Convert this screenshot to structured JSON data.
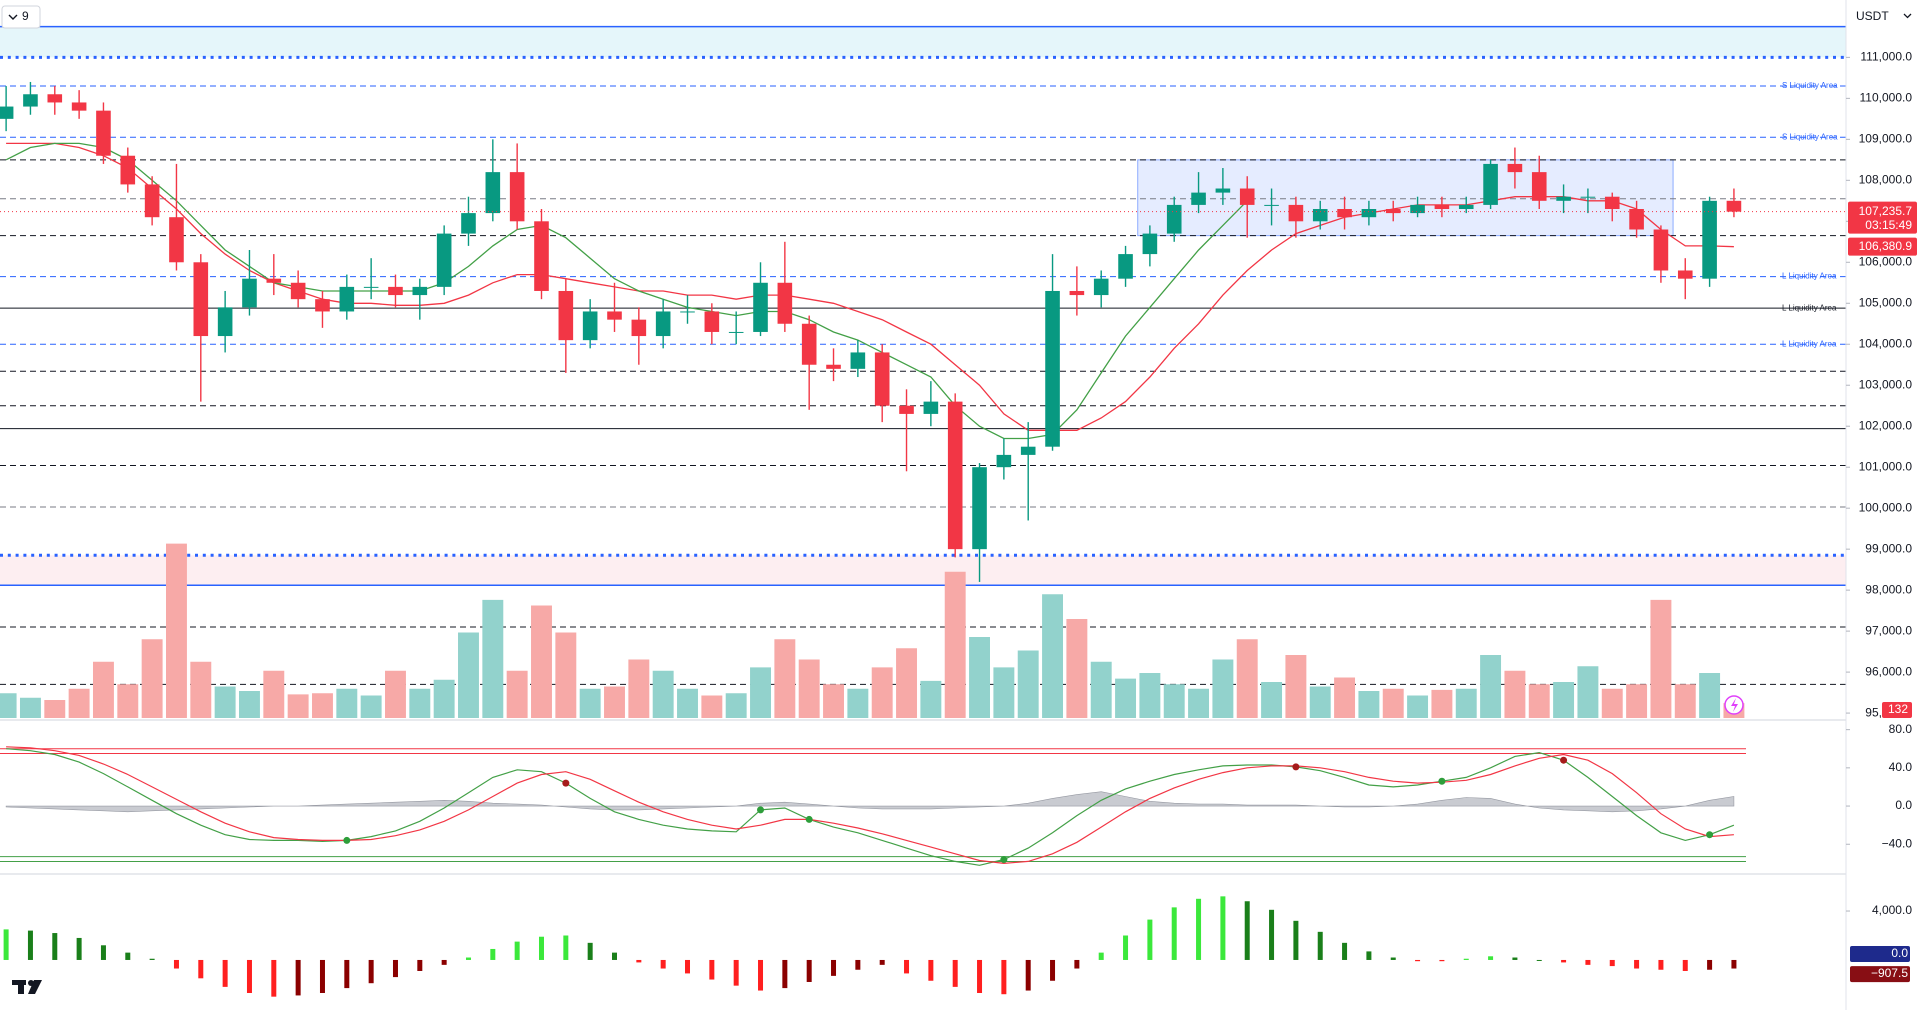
{
  "chart_data": {
    "type": "candlestick",
    "header": {
      "interval": "9",
      "currency": "USDT"
    },
    "ylim": [
      94880,
      112400
    ],
    "yticks": [
      {
        "value": 95000,
        "label": "95,000.0"
      },
      {
        "value": 96000,
        "label": "96,000.0"
      },
      {
        "value": 97000,
        "label": "97,000.0"
      },
      {
        "value": 98000,
        "label": "98,000.0"
      },
      {
        "value": 99000,
        "label": "99,000.0"
      },
      {
        "value": 100000,
        "label": "100,000.0"
      },
      {
        "value": 101000,
        "label": "101,000.0"
      },
      {
        "value": 102000,
        "label": "102,000.0"
      },
      {
        "value": 103000,
        "label": "103,000.0"
      },
      {
        "value": 104000,
        "label": "104,000.0"
      },
      {
        "value": 105000,
        "label": "105,000.0"
      },
      {
        "value": 106000,
        "label": "106,000.0"
      },
      {
        "value": 107000,
        "label": "107,000.0"
      },
      {
        "value": 108000,
        "label": "108,000.0"
      },
      {
        "value": 109000,
        "label": "109,000.0"
      },
      {
        "value": 110000,
        "label": "110,000.0"
      },
      {
        "value": 111000,
        "label": "111,000.0"
      }
    ],
    "up_color": "#089981",
    "down_color": "#f23645",
    "ohlc": [
      [
        109500,
        110300,
        109200,
        109800
      ],
      [
        109800,
        110400,
        109600,
        110100
      ],
      [
        110100,
        110300,
        109600,
        109900
      ],
      [
        109900,
        110200,
        109500,
        109700
      ],
      [
        109700,
        109900,
        108400,
        108600
      ],
      [
        108600,
        108800,
        107700,
        107900
      ],
      [
        107900,
        108100,
        106900,
        107100
      ],
      [
        107100,
        108400,
        105800,
        106000
      ],
      [
        106000,
        106200,
        102600,
        104200
      ],
      [
        104200,
        105300,
        103800,
        104900
      ],
      [
        104900,
        106300,
        104700,
        105600
      ],
      [
        105600,
        106200,
        105200,
        105500
      ],
      [
        105500,
        105800,
        104900,
        105100
      ],
      [
        105100,
        105300,
        104400,
        104800
      ],
      [
        104800,
        105700,
        104600,
        105400
      ],
      [
        105400,
        106100,
        105100,
        105400
      ],
      [
        105400,
        105700,
        104900,
        105200
      ],
      [
        105200,
        105600,
        104600,
        105400
      ],
      [
        105400,
        106900,
        105200,
        106700
      ],
      [
        106700,
        107600,
        106400,
        107200
      ],
      [
        107200,
        109000,
        107000,
        108200
      ],
      [
        108200,
        108900,
        106800,
        107000
      ],
      [
        107000,
        107300,
        105100,
        105300
      ],
      [
        105300,
        105600,
        103300,
        104100
      ],
      [
        104100,
        105100,
        103900,
        104800
      ],
      [
        104800,
        105500,
        104300,
        104600
      ],
      [
        104600,
        104900,
        103500,
        104200
      ],
      [
        104200,
        105100,
        103900,
        104800
      ],
      [
        104800,
        105200,
        104500,
        104800
      ],
      [
        104800,
        105000,
        104000,
        104300
      ],
      [
        104300,
        104800,
        104000,
        104300
      ],
      [
        104300,
        106000,
        104200,
        105500
      ],
      [
        105500,
        106500,
        104300,
        104500
      ],
      [
        104500,
        104700,
        102400,
        103500
      ],
      [
        103500,
        103900,
        103100,
        103400
      ],
      [
        103400,
        104100,
        103200,
        103800
      ],
      [
        103800,
        104000,
        102100,
        102500
      ],
      [
        102500,
        102900,
        100900,
        102300
      ],
      [
        102300,
        103100,
        102000,
        102600
      ],
      [
        102600,
        102800,
        98800,
        99000
      ],
      [
        99000,
        101100,
        98200,
        101000
      ],
      [
        101000,
        101700,
        100700,
        101300
      ],
      [
        101300,
        102100,
        99700,
        101500
      ],
      [
        101500,
        106200,
        101400,
        105300
      ],
      [
        105300,
        105900,
        104700,
        105200
      ],
      [
        105200,
        105800,
        104900,
        105600
      ],
      [
        105600,
        106400,
        105400,
        106200
      ],
      [
        106200,
        106900,
        105900,
        106700
      ],
      [
        106700,
        107600,
        106500,
        107400
      ],
      [
        107400,
        108200,
        107200,
        107700
      ],
      [
        107700,
        108300,
        107400,
        107800
      ],
      [
        107800,
        108100,
        106600,
        107400
      ],
      [
        107400,
        107800,
        106900,
        107400
      ],
      [
        107400,
        107600,
        106600,
        107000
      ],
      [
        107000,
        107500,
        106800,
        107300
      ],
      [
        107300,
        107600,
        106800,
        107100
      ],
      [
        107100,
        107500,
        106900,
        107300
      ],
      [
        107300,
        107500,
        107000,
        107200
      ],
      [
        107200,
        107600,
        107100,
        107400
      ],
      [
        107400,
        107600,
        107100,
        107300
      ],
      [
        107300,
        107600,
        107200,
        107400
      ],
      [
        107400,
        108500,
        107300,
        108400
      ],
      [
        108400,
        108800,
        107800,
        108200
      ],
      [
        108200,
        108600,
        107300,
        107500
      ],
      [
        107500,
        107900,
        107200,
        107600
      ],
      [
        107600,
        107800,
        107200,
        107600
      ],
      [
        107600,
        107700,
        107000,
        107300
      ],
      [
        107300,
        107500,
        106600,
        106800
      ],
      [
        106800,
        106900,
        105500,
        105800
      ],
      [
        105800,
        106100,
        105100,
        105600
      ],
      [
        105600,
        107600,
        105400,
        107500
      ],
      [
        107500,
        107800,
        107100,
        107235.7
      ]
    ],
    "volume": {
      "vlim": [
        0,
        1600
      ],
      "up_color": "#92d2cc",
      "down_color": "#f7a9a7",
      "label_color": "#f23645",
      "values": [
        220,
        180,
        160,
        260,
        500,
        300,
        700,
        1550,
        500,
        280,
        240,
        420,
        210,
        220,
        260,
        200,
        420,
        260,
        340,
        760,
        1050,
        420,
        1000,
        760,
        260,
        280,
        520,
        420,
        260,
        200,
        220,
        450,
        700,
        520,
        300,
        260,
        450,
        620,
        330,
        1300,
        720,
        450,
        600,
        1100,
        880,
        500,
        350,
        400,
        300,
        260,
        520,
        700,
        320,
        560,
        280,
        360,
        240,
        260,
        200,
        250,
        260,
        560,
        420,
        300,
        320,
        460,
        260,
        300,
        1050,
        300,
        400,
        132
      ]
    },
    "ma_slow": {
      "color": "#f23645",
      "last_label": "106,380.9",
      "values": [
        108900,
        108900,
        108900,
        108800,
        108600,
        108300,
        107800,
        107300,
        106700,
        106200,
        105800,
        105500,
        105300,
        105100,
        105000,
        105000,
        104950,
        104950,
        105000,
        105200,
        105500,
        105700,
        105700,
        105600,
        105500,
        105400,
        105300,
        105300,
        105200,
        105200,
        105100,
        105200,
        105200,
        105100,
        105000,
        104800,
        104600,
        104300,
        104000,
        103500,
        103000,
        102300,
        101900,
        101900,
        101900,
        102200,
        102600,
        103200,
        103900,
        104500,
        105200,
        105800,
        106300,
        106700,
        106900,
        107100,
        107200,
        107300,
        107400,
        107400,
        107400,
        107500,
        107600,
        107600,
        107600,
        107500,
        107500,
        107300,
        106800,
        106400,
        106400,
        106380.9
      ]
    },
    "ma_fast": {
      "color": "#43a047",
      "values": [
        108500,
        108800,
        108900,
        108900,
        108800,
        108500,
        108000,
        107500,
        106900,
        106300,
        105900,
        105500,
        105400,
        105300,
        105300,
        105300,
        105300,
        105300,
        105500,
        105900,
        106400,
        106800,
        106900,
        106600,
        106100,
        105600,
        105300,
        105100,
        104900,
        104800,
        104700,
        104800,
        104800,
        104600,
        104300,
        104100,
        103800,
        103500,
        103200,
        102500,
        102000,
        101700,
        101700,
        101800,
        102400,
        103300,
        104200,
        104900,
        105600,
        106300,
        106900,
        107500,
        null,
        null,
        null,
        null,
        null,
        null,
        null,
        null,
        null,
        null,
        null,
        null,
        null,
        null,
        null,
        null,
        null,
        null,
        null,
        null
      ]
    },
    "last_price": {
      "value": 107235.7,
      "label": "107,235.7",
      "countdown": "03:15:49",
      "color": "#f23645"
    },
    "zones": [
      {
        "range": [
          111000,
          111750
        ],
        "color": "#e5f6fa"
      },
      {
        "range": [
          98120,
          98850
        ],
        "color": "#fdeef1"
      }
    ],
    "range_box": {
      "price": [
        106650,
        108500
      ],
      "from": 47,
      "to": 68,
      "color": "#2962ff"
    },
    "levels": [
      {
        "value": 111750,
        "color": "#2962ff",
        "style": "solid",
        "weight": 1.5
      },
      {
        "value": 111000,
        "color": "#2962ff",
        "style": "dotted",
        "weight": 3
      },
      {
        "value": 110300,
        "color": "#2962ff",
        "style": "dashed",
        "weight": 1,
        "label": "S Liquidity Area"
      },
      {
        "value": 109050,
        "color": "#2962ff",
        "style": "dashed",
        "weight": 1,
        "label": "S Liquidity Area"
      },
      {
        "value": 108500,
        "color": "#131722",
        "style": "dashed",
        "weight": 1
      },
      {
        "value": 107550,
        "color": "#787b86",
        "style": "dashed",
        "weight": 1
      },
      {
        "value": 106650,
        "color": "#131722",
        "style": "dashed",
        "weight": 1
      },
      {
        "value": 105650,
        "color": "#2962ff",
        "style": "dashed",
        "weight": 1,
        "label": "L Liquidity Area"
      },
      {
        "value": 104880,
        "color": "#131722",
        "style": "solid",
        "weight": 1,
        "label": "L Liquidity Area"
      },
      {
        "value": 104000,
        "color": "#2962ff",
        "style": "dashed",
        "weight": 1,
        "label": "L Liquidity Area"
      },
      {
        "value": 103340,
        "color": "#131722",
        "style": "dashed",
        "weight": 1
      },
      {
        "value": 102500,
        "color": "#131722",
        "style": "dashed",
        "weight": 1
      },
      {
        "value": 101940,
        "color": "#131722",
        "style": "solid",
        "weight": 1
      },
      {
        "value": 101040,
        "color": "#131722",
        "style": "dashed",
        "weight": 1
      },
      {
        "value": 100030,
        "color": "#787b86",
        "style": "dashed",
        "weight": 1
      },
      {
        "value": 98850,
        "color": "#2962ff",
        "style": "dotted",
        "weight": 3
      },
      {
        "value": 98120,
        "color": "#2962ff",
        "style": "solid",
        "weight": 1.5
      },
      {
        "value": 97100,
        "color": "#131722",
        "style": "dashed",
        "weight": 1
      },
      {
        "value": 95700,
        "color": "#131722",
        "style": "dashed",
        "weight": 1
      }
    ],
    "oscillator": {
      "ylim": [
        -68,
        88
      ],
      "yticks": [
        {
          "value": 80,
          "label": "80.0"
        },
        {
          "value": 40,
          "label": "40.0"
        },
        {
          "value": 0,
          "label": "0.0"
        },
        {
          "value": -40,
          "label": "−40.0"
        }
      ],
      "bands": [
        {
          "value": 60,
          "color": "#f23645"
        },
        {
          "value": 55,
          "color": "#f23645"
        },
        {
          "value": -53,
          "color": "#43a047"
        },
        {
          "value": -58,
          "color": "#43a047"
        }
      ],
      "k_color": "#43a047",
      "d_color": "#f23645",
      "hist_color": "#b2b5be",
      "up_dot": "#2e9e3a",
      "down_dot": "#a61b1b",
      "k": [
        60,
        58,
        54,
        46,
        34,
        20,
        6,
        -8,
        -20,
        -30,
        -35,
        -36,
        -36,
        -37,
        -36,
        -32,
        -26,
        -16,
        -2,
        14,
        30,
        38,
        36,
        24,
        8,
        -6,
        -14,
        -20,
        -24,
        -26,
        -27,
        -4,
        -2,
        -14,
        -22,
        -28,
        -36,
        -44,
        -52,
        -58,
        -62,
        -56,
        -44,
        -28,
        -10,
        6,
        18,
        26,
        33,
        38,
        42,
        43,
        43,
        41,
        37,
        30,
        22,
        20,
        22,
        26,
        30,
        40,
        52,
        56,
        48,
        30,
        10,
        -10,
        -28,
        -36,
        -30,
        -20
      ],
      "d": [
        62,
        61,
        58,
        53,
        44,
        33,
        20,
        7,
        -6,
        -18,
        -27,
        -33,
        -35,
        -36,
        -36,
        -35,
        -31,
        -25,
        -16,
        -4,
        10,
        24,
        33,
        36,
        28,
        16,
        4,
        -6,
        -14,
        -20,
        -24,
        -20,
        -14,
        -14,
        -18,
        -23,
        -29,
        -36,
        -43,
        -50,
        -57,
        -60,
        -58,
        -50,
        -38,
        -22,
        -6,
        8,
        19,
        28,
        35,
        40,
        42,
        42,
        40,
        36,
        30,
        26,
        24,
        25,
        27,
        33,
        42,
        50,
        54,
        48,
        34,
        14,
        -8,
        -24,
        -32,
        -30
      ],
      "hist": [
        -1,
        -2,
        -3,
        -4,
        -5,
        -6,
        -5,
        -4,
        -3,
        -2,
        -1,
        0,
        0,
        1,
        2,
        3,
        4,
        5,
        6,
        5,
        3,
        2,
        1,
        -1,
        -3,
        -4,
        -4,
        -3,
        -2,
        -1,
        0,
        3,
        4,
        2,
        0,
        -2,
        -3,
        -3,
        -3,
        -2,
        -1,
        0,
        3,
        8,
        12,
        15,
        10,
        5,
        3,
        2,
        2,
        1,
        1,
        1,
        0,
        -1,
        -1,
        0,
        2,
        6,
        9,
        8,
        2,
        -2,
        -4,
        -5,
        -6,
        -5,
        -3,
        0,
        6,
        10
      ]
    },
    "macd": {
      "ylim": [
        -4090,
        6700
      ],
      "yticks": [
        {
          "value": 4000,
          "label": "4,000.0"
        }
      ],
      "colors": {
        "up_rising": "#3be83b",
        "up_falling": "#1a7f1a",
        "down_falling": "#ff1f1f",
        "down_rising": "#8b0000"
      },
      "values": [
        2500,
        2400,
        2200,
        1800,
        1200,
        600,
        100,
        -700,
        -1500,
        -2200,
        -2700,
        -3000,
        -2900,
        -2700,
        -2300,
        -1900,
        -1400,
        -900,
        -400,
        200,
        900,
        1500,
        1900,
        2000,
        1400,
        600,
        -200,
        -700,
        -1100,
        -1600,
        -2100,
        -2500,
        -2300,
        -1800,
        -1300,
        -800,
        -400,
        -1100,
        -1700,
        -2200,
        -2700,
        -2800,
        -2500,
        -1700,
        -700,
        600,
        2000,
        3300,
        4300,
        5000,
        5200,
        4800,
        4100,
        3200,
        2300,
        1400,
        700,
        200,
        -100,
        -100,
        100,
        300,
        200,
        0,
        -200,
        -400,
        -500,
        -700,
        -800,
        -900,
        -800,
        -700
      ],
      "value_labels": [
        {
          "value": 0,
          "label": "0.0",
          "color": "#1e2a8c"
        },
        {
          "value": -907.5,
          "label": "−907.5",
          "color": "#880e14"
        }
      ]
    }
  }
}
